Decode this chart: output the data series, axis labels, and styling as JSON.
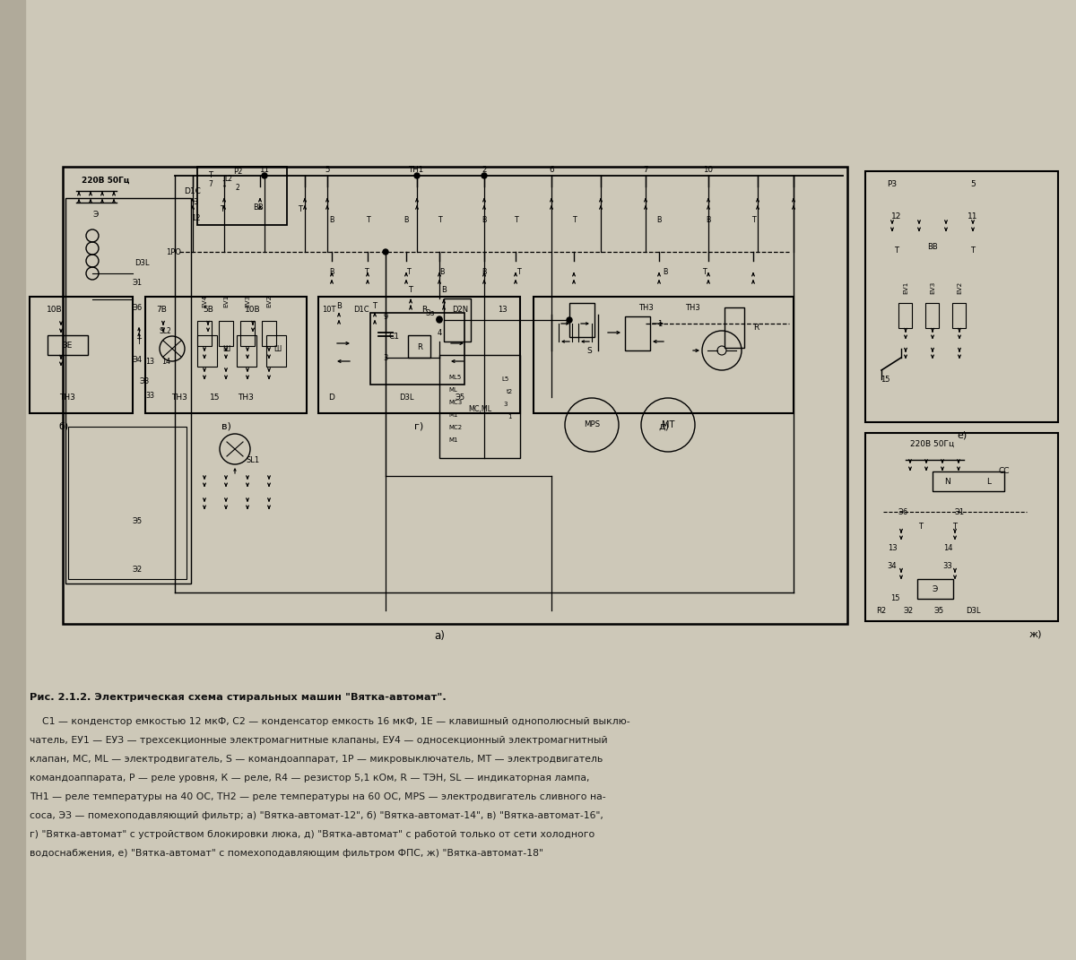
{
  "bg_color": "#cdc8b8",
  "page_bg": "#c8c3b5",
  "title_bold": "Рис. 2.1.2. Электрическая схема стиральных машин \"Вятка-автомат\".",
  "caption_lines": [
    "    С1 — конденстор емкостью 12 мкФ, С2 — конденсатор емкость 16 мкФ, 1Е — клавишный однополюсный выклю-",
    "чатель, ЕУ1 — ЕУЗ — трехсекционные электромагнитные клапаны, ЕУ4 — односекционный электромагнитный",
    "клапан, МС, ML — электродвигатель, S — командоаппарат, 1Р — микровыключатель, МТ — электродвигатель",
    "командоаппарата, Р — реле уровня, К — реле, R4 — резистор 5,1 кОм, R — ТЭН, SL — индикаторная лампа,",
    "ТН1 — реле температуры на 40 ОС, ТН2 — реле температуры на 60 ОС, MPS — электродвигатель сливного на-",
    "соса, ЭЗ — помехоподавляющий фильтр; а) \"Вятка-автомат-12\", б) \"Вятка-автомат-14\", в) \"Вятка-автомат-16\",",
    "г) \"Вятка-автомат\" с устройством блокировки люка, д) \"Вятка-автомат\" с работой только от сети холодного",
    "водоснабжения, е) \"Вятка-автомат\" с помехоподавляющим фильтром ФПС, ж) \"Вятка-автомат-18\""
  ],
  "fig_width": 12.0,
  "fig_height": 10.71,
  "dpi": 100
}
